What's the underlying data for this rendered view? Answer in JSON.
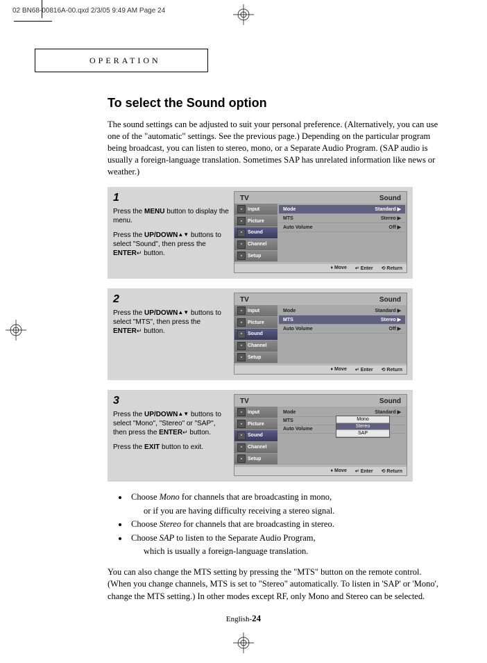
{
  "print_header": "02 BN68-00816A-00.qxd  2/3/05  9:49 AM  Page 24",
  "section_label": "OPERATION",
  "title": "To select the Sound option",
  "intro": "The sound settings can be adjusted to suit your personal preference. (Alternatively, you can use one of the \"automatic\" settings. See the previous page.) Depending on the particular program being broadcast, you can listen to stereo, mono, or a Separate Audio Program. (SAP audio is usually a foreign-language translation. Sometimes SAP has unrelated information like news or weather.)",
  "steps": [
    {
      "num": "1",
      "paras": [
        {
          "pre": "Press the ",
          "bold": "MENU",
          "post": " button to display the menu."
        },
        {
          "pre": "Press the ",
          "bold": "UP/DOWN",
          "icon": "▲▼",
          "post": " buttons to select \"Sound\", then press the ",
          "bold2": "ENTER",
          "icon2": "↵",
          "post2": " button."
        }
      ],
      "tv": {
        "title_left": "TV",
        "title_right": "Sound",
        "side": [
          "Input",
          "Picture",
          "Sound",
          "Channel",
          "Setup"
        ],
        "side_sel": 2,
        "rows": [
          {
            "l": "Mode",
            "r": "Standard",
            "arrow": true,
            "hl": true
          },
          {
            "l": "MTS",
            "r": "Stereo",
            "arrow": true
          },
          {
            "l": "Auto Volume",
            "r": "Off",
            "arrow": true
          }
        ],
        "footer": [
          "♦ Move",
          "↵ Enter",
          "⟲ Return"
        ]
      }
    },
    {
      "num": "2",
      "paras": [
        {
          "pre": "Press the ",
          "bold": "UP/DOWN",
          "icon": "▲▼",
          "post": " buttons to select \"MTS\", then press the ",
          "bold2": "ENTER",
          "icon2": "↵",
          "post2": " button."
        }
      ],
      "tv": {
        "title_left": "TV",
        "title_right": "Sound",
        "side": [
          "Input",
          "Picture",
          "Sound",
          "Channel",
          "Setup"
        ],
        "side_sel": 2,
        "rows": [
          {
            "l": "Mode",
            "r": "Standard",
            "arrow": true
          },
          {
            "l": "MTS",
            "r": "Stereo",
            "arrow": true,
            "hl": true
          },
          {
            "l": "Auto Volume",
            "r": "Off",
            "arrow": true
          }
        ],
        "footer": [
          "♦ Move",
          "↵ Enter",
          "⟲ Return"
        ]
      }
    },
    {
      "num": "3",
      "paras": [
        {
          "pre": "Press the ",
          "bold": "UP/DOWN",
          "icon": "▲▼",
          "post": " buttons to select \"Mono\", \"Stereo\" or \"SAP\", then press the ",
          "bold2": "ENTER",
          "icon2": "↵",
          "post2": " button."
        },
        {
          "pre": "Press the ",
          "bold": "EXIT",
          "post": " button to exit."
        }
      ],
      "tv": {
        "title_left": "TV",
        "title_right": "Sound",
        "side": [
          "Input",
          "Picture",
          "Sound",
          "Channel",
          "Setup"
        ],
        "side_sel": 2,
        "rows": [
          {
            "l": "Mode",
            "r": "Standard",
            "arrow": true
          },
          {
            "l": "MTS",
            "r": "",
            "arrow": false
          },
          {
            "l": "Auto Volume",
            "r": "",
            "arrow": false
          }
        ],
        "popup": {
          "items": [
            "Mono",
            "Stereo",
            "SAP"
          ],
          "sel": 1
        },
        "footer": [
          "♦ Move",
          "↵ Enter",
          "⟲ Return"
        ]
      }
    }
  ],
  "bullets": [
    {
      "main": "Choose <i>Mono</i> for channels that are broadcasting in mono,",
      "cont": "or if you are having difficulty receiving a stereo signal."
    },
    {
      "main": "Choose <i>Stereo</i> for channels that are broadcasting in stereo."
    },
    {
      "main": "Choose <i>SAP</i> to listen to the Separate Audio Program,",
      "cont": "which is usually a foreign-language translation."
    }
  ],
  "note": "You can also change the MTS setting by pressing the \"MTS\" button on the remote control. (When you change channels, MTS is set to \"Stereo\" automatically. To listen in 'SAP' or 'Mono', change the MTS setting.) In other modes except RF, only Mono and Stereo can be selected.",
  "page_num_prefix": "English-",
  "page_num": "24",
  "colors": {
    "step_bg": "#d6d6d6",
    "tv_bg": "#b8b8b8",
    "highlight": "#606080"
  }
}
